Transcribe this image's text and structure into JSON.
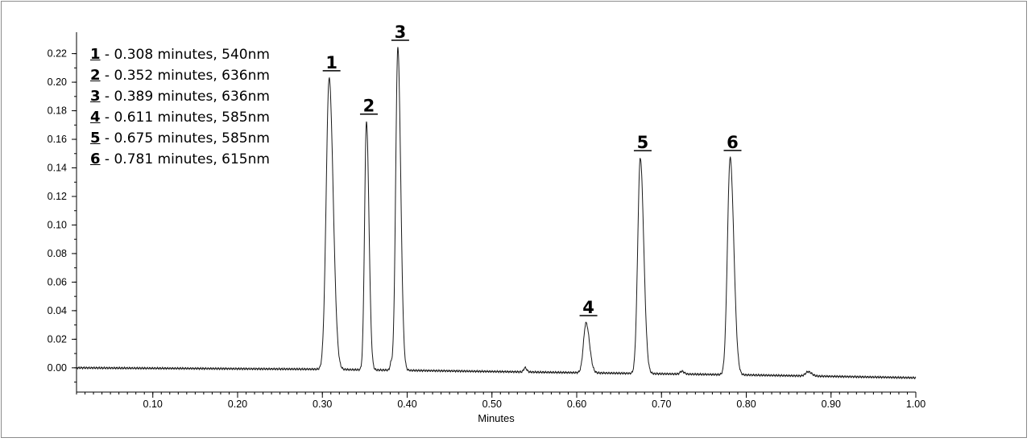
{
  "chart_data": {
    "type": "line",
    "xlabel": "Minutes",
    "ylabel": "",
    "xlim": [
      0.01,
      1.0
    ],
    "ylim": [
      -0.017,
      0.235
    ],
    "x_ticks": [
      "0.10",
      "0.20",
      "0.30",
      "0.40",
      "0.50",
      "0.60",
      "0.70",
      "0.80",
      "0.90",
      "1.00"
    ],
    "y_ticks": [
      "0.00",
      "0.02",
      "0.04",
      "0.06",
      "0.08",
      "0.10",
      "0.12",
      "0.14",
      "0.16",
      "0.18",
      "0.20",
      "0.22"
    ],
    "baseline": [
      [
        0.01,
        0.0
      ],
      [
        0.3,
        -0.001
      ],
      [
        0.55,
        -0.003
      ],
      [
        0.8,
        -0.005
      ],
      [
        1.0,
        -0.007
      ]
    ],
    "peaks": [
      {
        "label": "1",
        "x": 0.308,
        "height": 0.204,
        "width": 0.0035
      },
      {
        "label": "2",
        "x": 0.352,
        "height": 0.174,
        "width": 0.0022
      },
      {
        "label": "3",
        "x": 0.389,
        "height": 0.226,
        "width": 0.0025
      },
      {
        "label": "4",
        "x": 0.611,
        "height": 0.035,
        "width": 0.003
      },
      {
        "label": "5",
        "x": 0.675,
        "height": 0.151,
        "width": 0.003
      },
      {
        "label": "6",
        "x": 0.781,
        "height": 0.152,
        "width": 0.0032
      }
    ],
    "minor_bumps": [
      {
        "x": 0.381,
        "height": 0.005,
        "width": 0.0012
      },
      {
        "x": 0.539,
        "height": 0.003,
        "width": 0.0015
      },
      {
        "x": 0.724,
        "height": 0.002,
        "width": 0.002
      },
      {
        "x": 0.873,
        "height": 0.003,
        "width": 0.003
      }
    ]
  },
  "legend": [
    {
      "num": "1",
      "text": " - 0.308 minutes, 540nm"
    },
    {
      "num": "2",
      "text": " - 0.352 minutes, 636nm"
    },
    {
      "num": "3",
      "text": " - 0.389 minutes, 636nm"
    },
    {
      "num": "4",
      "text": " - 0.611 minutes, 585nm"
    },
    {
      "num": "5",
      "text": " - 0.675 minutes, 585nm"
    },
    {
      "num": "6",
      "text": " - 0.781 minutes, 615nm"
    }
  ]
}
